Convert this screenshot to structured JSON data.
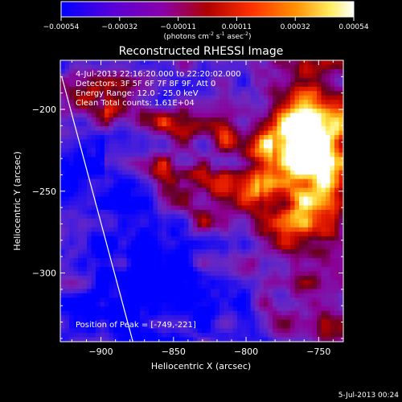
{
  "colorbar": {
    "ticks": [
      "-0.00054",
      "-0.00032",
      "-0.00011",
      "0.00011",
      "0.00032",
      "0.00054"
    ],
    "units_main": "(photons cm",
    "units_exp1": "-2",
    "units_mid": " s",
    "units_exp2": "-1",
    "units_tail": " asec",
    "units_exp3": "-2",
    "units_close": ")"
  },
  "info": {
    "time": "4-Jul-2013 22:16:20.000 to 22:20:02.000",
    "detectors": "Detectors: 3F 5F 6F 7F 8F 9F, Att 0",
    "energy": "Energy Range: 12.0 - 25.0 keV",
    "clean": "Clean    Total counts: 1.61E+04",
    "peak": "Position of Peak = [-749,-221]"
  },
  "timestamp": "5-Jul-2013 00:24",
  "chart_data": {
    "type": "heatmap",
    "title": "Reconstructed RHESSI Image",
    "xlabel": "Heliocentric X (arcsec)",
    "ylabel": "Heliocentric Y (arcsec)",
    "xlim": [
      -928,
      -733
    ],
    "ylim": [
      -342,
      -170
    ],
    "xticks": [
      {
        "value": -900,
        "label": "−900"
      },
      {
        "value": -850,
        "label": "−850"
      },
      {
        "value": -800,
        "label": "−800"
      },
      {
        "value": -750,
        "label": "−750"
      }
    ],
    "yticks": [
      {
        "value": -200,
        "label": "−200"
      },
      {
        "value": -250,
        "label": "−250"
      },
      {
        "value": -300,
        "label": "−300"
      }
    ],
    "value_range": [
      -0.00054,
      0.00054
    ],
    "colormap": [
      "#0000ff",
      "#6600cc",
      "#9900aa",
      "#cc0000",
      "#ff4400",
      "#ff9900",
      "#ffff66",
      "#ffffff"
    ],
    "limb_line": [
      [
        -927,
        -180
      ],
      [
        -878,
        -342
      ]
    ],
    "peak": [
      -749,
      -221
    ],
    "grid": false
  }
}
